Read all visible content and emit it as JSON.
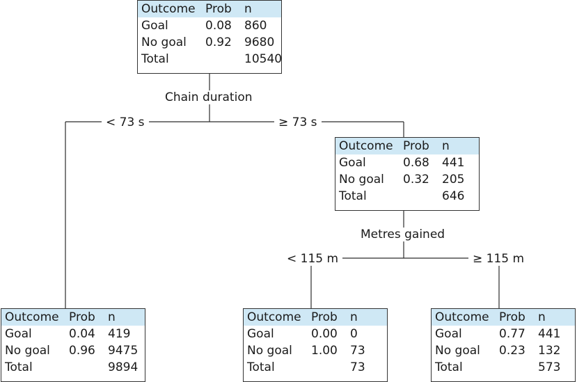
{
  "header": {
    "outcome": "Outcome",
    "prob": "Prob",
    "n": "n"
  },
  "nodes": {
    "root": {
      "rows": [
        {
          "outcome": "Goal",
          "prob": "0.08",
          "n": "860"
        },
        {
          "outcome": "No goal",
          "prob": "0.92",
          "n": "9680"
        },
        {
          "outcome": "Total",
          "prob": "",
          "n": "10540"
        }
      ]
    },
    "chain_short": {
      "rows": [
        {
          "outcome": "Goal",
          "prob": "0.04",
          "n": "419"
        },
        {
          "outcome": "No goal",
          "prob": "0.96",
          "n": "9475"
        },
        {
          "outcome": "Total",
          "prob": "",
          "n": "9894"
        }
      ]
    },
    "chain_long": {
      "rows": [
        {
          "outcome": "Goal",
          "prob": "0.68",
          "n": "441"
        },
        {
          "outcome": "No goal",
          "prob": "0.32",
          "n": "205"
        },
        {
          "outcome": "Total",
          "prob": "",
          "n": "646"
        }
      ]
    },
    "metres_short": {
      "rows": [
        {
          "outcome": "Goal",
          "prob": "0.00",
          "n": "0"
        },
        {
          "outcome": "No goal",
          "prob": "1.00",
          "n": "73"
        },
        {
          "outcome": "Total",
          "prob": "",
          "n": "73"
        }
      ]
    },
    "metres_long": {
      "rows": [
        {
          "outcome": "Goal",
          "prob": "0.77",
          "n": "441"
        },
        {
          "outcome": "No goal",
          "prob": "0.23",
          "n": "132"
        },
        {
          "outcome": "Total",
          "prob": "",
          "n": "573"
        }
      ]
    }
  },
  "splits": {
    "chain": {
      "variable": "Chain duration",
      "left": "< 73 s",
      "right": "≥ 73 s"
    },
    "metres": {
      "variable": "Metres gained",
      "left": "< 115 m",
      "right": "≥ 115 m"
    }
  },
  "colors": {
    "header_fill": "#cfe8f5",
    "border": "#333333",
    "line": "#2b2b2b"
  }
}
